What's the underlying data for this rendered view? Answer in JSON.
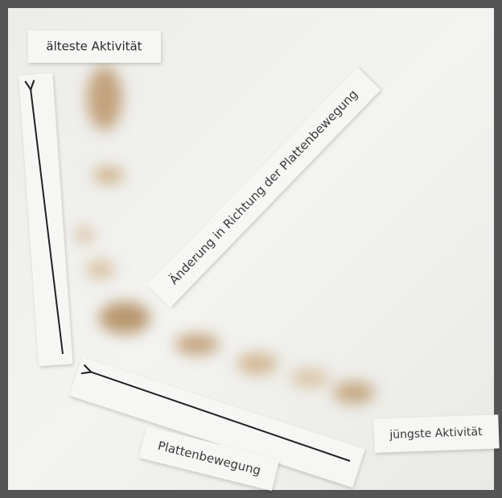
{
  "labels": {
    "oldest": "älteste Aktivität",
    "change": "Änderung in Richtung der Plattenbewegung",
    "youngest": "jüngste Aktivität",
    "plate_motion": "Plattenbewegung"
  }
}
